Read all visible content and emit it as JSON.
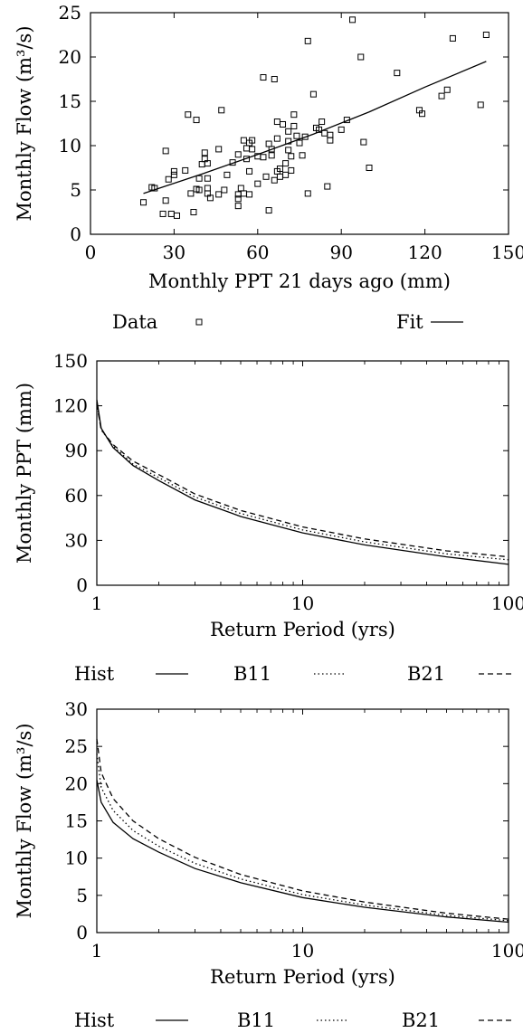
{
  "chart_data": [
    {
      "type": "scatter",
      "xlabel": "Monthly PPT 21 days ago (mm)",
      "ylabel": "Monthly Flow (m³/s)",
      "xlim": [
        0,
        150
      ],
      "ylim": [
        0,
        25
      ],
      "xticks": [
        0,
        30,
        60,
        90,
        120,
        150
      ],
      "yticks": [
        0,
        5,
        10,
        15,
        20,
        25
      ],
      "grid": false,
      "legend_position": "below",
      "series": [
        {
          "name": "Data",
          "marker": "open-square",
          "points": [
            [
              19,
              3.6
            ],
            [
              22,
              5.3
            ],
            [
              23,
              5.2
            ],
            [
              26,
              2.3
            ],
            [
              27,
              3.8
            ],
            [
              27,
              9.4
            ],
            [
              28,
              6.2
            ],
            [
              29,
              2.3
            ],
            [
              30,
              6.7
            ],
            [
              30,
              7.1
            ],
            [
              31,
              2.1
            ],
            [
              34,
              7.2
            ],
            [
              35,
              13.5
            ],
            [
              36,
              4.6
            ],
            [
              37,
              2.5
            ],
            [
              38,
              5.1
            ],
            [
              38,
              12.9
            ],
            [
              39,
              5.0
            ],
            [
              39,
              6.3
            ],
            [
              40,
              7.9
            ],
            [
              41,
              8.5
            ],
            [
              41,
              9.2
            ],
            [
              42,
              8.0
            ],
            [
              42,
              5.2
            ],
            [
              42,
              4.6
            ],
            [
              42,
              6.3
            ],
            [
              43,
              4.1
            ],
            [
              46,
              4.5
            ],
            [
              46,
              9.6
            ],
            [
              47,
              14.0
            ],
            [
              48,
              5.0
            ],
            [
              49,
              6.7
            ],
            [
              51,
              8.1
            ],
            [
              53,
              9.0
            ],
            [
              53,
              4.5
            ],
            [
              53,
              4.0
            ],
            [
              53,
              3.2
            ],
            [
              54,
              5.2
            ],
            [
              55,
              10.6
            ],
            [
              55,
              4.6
            ],
            [
              56,
              8.5
            ],
            [
              56,
              9.7
            ],
            [
              57,
              7.1
            ],
            [
              57,
              4.5
            ],
            [
              57,
              10.3
            ],
            [
              58,
              10.6
            ],
            [
              58,
              9.6
            ],
            [
              60,
              5.7
            ],
            [
              60,
              8.8
            ],
            [
              62,
              8.7
            ],
            [
              62,
              17.7
            ],
            [
              63,
              6.5
            ],
            [
              64,
              2.7
            ],
            [
              64,
              10.2
            ],
            [
              65,
              8.9
            ],
            [
              65,
              9.6
            ],
            [
              66,
              17.5
            ],
            [
              66,
              6.1
            ],
            [
              67,
              10.8
            ],
            [
              67,
              12.7
            ],
            [
              67,
              7.1
            ],
            [
              68,
              6.5
            ],
            [
              68,
              7.4
            ],
            [
              69,
              12.4
            ],
            [
              70,
              8.0
            ],
            [
              70,
              6.7
            ],
            [
              71,
              9.5
            ],
            [
              71,
              11.6
            ],
            [
              71,
              10.5
            ],
            [
              72,
              8.8
            ],
            [
              72,
              7.2
            ],
            [
              73,
              12.2
            ],
            [
              73,
              13.5
            ],
            [
              74,
              11.1
            ],
            [
              75,
              10.3
            ],
            [
              76,
              8.9
            ],
            [
              77,
              11.0
            ],
            [
              78,
              4.6
            ],
            [
              78,
              21.8
            ],
            [
              80,
              15.8
            ],
            [
              81,
              12.0
            ],
            [
              82,
              11.8
            ],
            [
              83,
              12.7
            ],
            [
              84,
              11.4
            ],
            [
              85,
              5.4
            ],
            [
              86,
              10.6
            ],
            [
              86,
              11.2
            ],
            [
              90,
              11.8
            ],
            [
              92,
              12.9
            ],
            [
              94,
              24.2
            ],
            [
              97,
              20.0
            ],
            [
              98,
              10.4
            ],
            [
              100,
              7.5
            ],
            [
              110,
              18.2
            ],
            [
              118,
              14.0
            ],
            [
              119,
              13.6
            ],
            [
              126,
              15.6
            ],
            [
              128,
              16.3
            ],
            [
              130,
              22.1
            ],
            [
              140,
              14.6
            ],
            [
              142,
              22.5
            ]
          ]
        },
        {
          "name": "Fit",
          "line": "solid",
          "points": [
            [
              19,
              4.6
            ],
            [
              40,
              6.8
            ],
            [
              60,
              9.0
            ],
            [
              80,
              11.3
            ],
            [
              100,
              13.8
            ],
            [
              120,
              16.6
            ],
            [
              142,
              19.5
            ]
          ]
        }
      ]
    },
    {
      "type": "line",
      "xlabel": "Return Period (yrs)",
      "ylabel": "Monthly PPT (mm)",
      "xscale": "log",
      "xlim": [
        1,
        100
      ],
      "ylim": [
        0,
        150
      ],
      "xticks": [
        1,
        10,
        100
      ],
      "yticks": [
        0,
        30,
        60,
        90,
        120,
        150
      ],
      "grid": false,
      "legend_position": "below",
      "series": [
        {
          "name": "Hist",
          "line": "solid",
          "points": [
            [
              1.0,
              124
            ],
            [
              1.05,
              105
            ],
            [
              1.2,
              92
            ],
            [
              1.5,
              80
            ],
            [
              2,
              70
            ],
            [
              3,
              57
            ],
            [
              5,
              46
            ],
            [
              10,
              35
            ],
            [
              20,
              27
            ],
            [
              50,
              19
            ],
            [
              100,
              14
            ]
          ]
        },
        {
          "name": "B11",
          "line": "dotted",
          "points": [
            [
              1.0,
              122
            ],
            [
              1.05,
              104
            ],
            [
              1.2,
              93
            ],
            [
              1.5,
              81
            ],
            [
              2,
              72
            ],
            [
              3,
              59
            ],
            [
              5,
              48
            ],
            [
              10,
              37
            ],
            [
              20,
              29
            ],
            [
              50,
              21
            ],
            [
              100,
              17
            ]
          ]
        },
        {
          "name": "B21",
          "line": "dashed",
          "points": [
            [
              1.0,
              121
            ],
            [
              1.05,
              104
            ],
            [
              1.2,
              94
            ],
            [
              1.5,
              83
            ],
            [
              2,
              74
            ],
            [
              3,
              61
            ],
            [
              5,
              50
            ],
            [
              10,
              39
            ],
            [
              20,
              31
            ],
            [
              50,
              23
            ],
            [
              100,
              19
            ]
          ]
        }
      ]
    },
    {
      "type": "line",
      "xlabel": "Return Period (yrs)",
      "ylabel": "Monthly Flow (m³/s)",
      "xscale": "log",
      "xlim": [
        1,
        100
      ],
      "ylim": [
        0,
        30
      ],
      "xticks": [
        1,
        10,
        100
      ],
      "yticks": [
        0,
        5,
        10,
        15,
        20,
        25,
        30
      ],
      "grid": false,
      "legend_position": "below",
      "series": [
        {
          "name": "Hist",
          "line": "solid",
          "points": [
            [
              1.0,
              20.5
            ],
            [
              1.05,
              17.5
            ],
            [
              1.2,
              14.8
            ],
            [
              1.5,
              12.6
            ],
            [
              2,
              10.8
            ],
            [
              3,
              8.6
            ],
            [
              5,
              6.7
            ],
            [
              10,
              4.7
            ],
            [
              20,
              3.4
            ],
            [
              50,
              2.1
            ],
            [
              100,
              1.4
            ]
          ]
        },
        {
          "name": "B11",
          "line": "dotted",
          "points": [
            [
              1.0,
              24.0
            ],
            [
              1.05,
              19.5
            ],
            [
              1.2,
              16.4
            ],
            [
              1.5,
              13.7
            ],
            [
              2,
              11.6
            ],
            [
              3,
              9.3
            ],
            [
              5,
              7.2
            ],
            [
              10,
              5.1
            ],
            [
              20,
              3.7
            ],
            [
              50,
              2.3
            ],
            [
              100,
              1.6
            ]
          ]
        },
        {
          "name": "B21",
          "line": "dashed",
          "points": [
            [
              1.0,
              26.0
            ],
            [
              1.05,
              21.5
            ],
            [
              1.2,
              18.0
            ],
            [
              1.5,
              15.0
            ],
            [
              2,
              12.6
            ],
            [
              3,
              10.1
            ],
            [
              5,
              7.8
            ],
            [
              10,
              5.6
            ],
            [
              20,
              4.1
            ],
            [
              50,
              2.6
            ],
            [
              100,
              1.8
            ]
          ]
        }
      ]
    }
  ]
}
